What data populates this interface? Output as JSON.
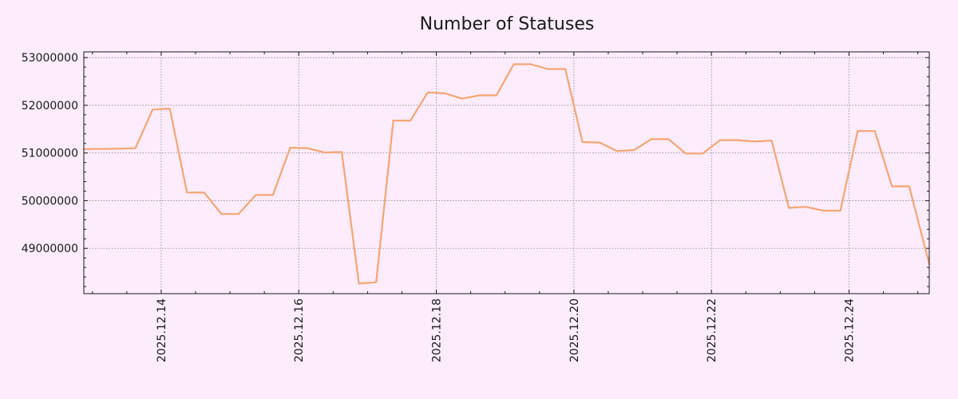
{
  "chart_data": {
    "type": "line",
    "title": "Number of Statuses",
    "xlabel": "",
    "ylabel": "",
    "x_start": "2025.12.13",
    "x_end": "2025.12.25",
    "xlim": [
      "2025.12.12 21:00",
      "2025.12.25 04:00"
    ],
    "ylim": [
      48050000,
      53120000
    ],
    "x_ticks": [
      "2025.12.14",
      "2025.12.16",
      "2025.12.18",
      "2025.12.20",
      "2025.12.22",
      "2025.12.24"
    ],
    "y_ticks": [
      49000000,
      50000000,
      51000000,
      52000000,
      53000000
    ],
    "y_tick_labels": [
      "49000000",
      "50000000",
      "51000000",
      "52000000",
      "53000000"
    ],
    "grid": true,
    "series": [
      {
        "color": "#f4a572",
        "x": [
          "2025.12.12 21:00",
          "2025.12.13 09:00",
          "2025.12.13 15:00",
          "2025.12.13 21:00",
          "2025.12.14 03:00",
          "2025.12.14 09:00",
          "2025.12.14 15:00",
          "2025.12.14 21:00",
          "2025.12.15 03:00",
          "2025.12.15 09:00",
          "2025.12.15 15:00",
          "2025.12.15 21:00",
          "2025.12.16 03:00",
          "2025.12.16 09:00",
          "2025.12.16 15:00",
          "2025.12.16 21:00",
          "2025.12.17 03:00",
          "2025.12.17 09:00",
          "2025.12.17 15:00",
          "2025.12.17 21:00",
          "2025.12.18 03:00",
          "2025.12.18 09:00",
          "2025.12.18 15:00",
          "2025.12.18 21:00",
          "2025.12.19 03:00",
          "2025.12.19 09:00",
          "2025.12.19 15:00",
          "2025.12.19 21:00",
          "2025.12.20 03:00",
          "2025.12.20 09:00",
          "2025.12.20 15:00",
          "2025.12.20 21:00",
          "2025.12.21 03:00",
          "2025.12.21 09:00",
          "2025.12.21 15:00",
          "2025.12.21 21:00",
          "2025.12.22 03:00",
          "2025.12.22 09:00",
          "2025.12.22 15:00",
          "2025.12.22 21:00",
          "2025.12.23 03:00",
          "2025.12.23 09:00",
          "2025.12.23 15:00",
          "2025.12.23 21:00",
          "2025.12.24 03:00",
          "2025.12.24 09:00",
          "2025.12.24 15:00",
          "2025.12.24 21:00",
          "2025.12.25 04:00"
        ],
        "y": [
          51080000,
          51090000,
          51100000,
          51910000,
          51930000,
          50170000,
          50170000,
          49720000,
          49720000,
          50120000,
          50120000,
          51110000,
          51100000,
          51010000,
          51020000,
          48260000,
          48290000,
          51680000,
          51680000,
          52270000,
          52250000,
          52140000,
          52210000,
          52210000,
          52860000,
          52860000,
          52760000,
          52760000,
          51230000,
          51220000,
          51040000,
          51060000,
          51290000,
          51290000,
          50990000,
          50990000,
          51270000,
          51270000,
          51240000,
          51260000,
          49850000,
          49870000,
          49790000,
          49790000,
          51460000,
          51460000,
          50300000,
          50300000,
          48670000
        ]
      }
    ]
  }
}
